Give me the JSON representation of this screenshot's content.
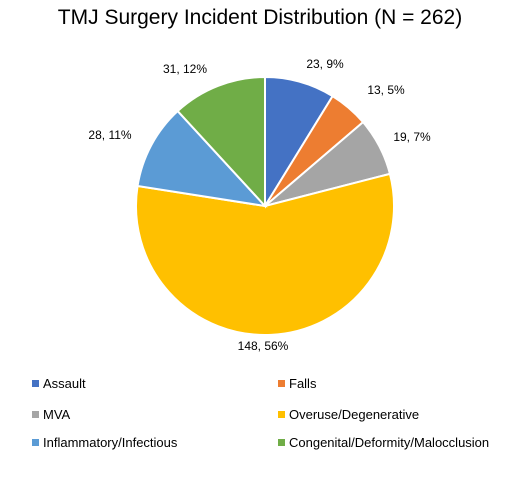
{
  "chart_data": {
    "type": "pie",
    "title": "TMJ Surgery Incident Distribution (N = 262)",
    "slices": [
      {
        "name": "Assault",
        "value": 23,
        "percent": 9,
        "label": "23, 9%",
        "color": "#4472C4"
      },
      {
        "name": "Falls",
        "value": 13,
        "percent": 5,
        "label": "13, 5%",
        "color": "#ED7D31"
      },
      {
        "name": "MVA",
        "value": 19,
        "percent": 7,
        "label": "19, 7%",
        "color": "#A5A5A5"
      },
      {
        "name": "Overuse/Degenerative",
        "value": 148,
        "percent": 56,
        "label": "148, 56%",
        "color": "#FFC000"
      },
      {
        "name": "Inflammatory/Infectious",
        "value": 28,
        "percent": 11,
        "label": "28, 11%",
        "color": "#5B9BD5"
      },
      {
        "name": "Congenital/Deformity/Malocclusion",
        "value": 31,
        "percent": 12,
        "label": "31, 12%",
        "color": "#70AD47"
      }
    ],
    "legend_position": "bottom"
  }
}
